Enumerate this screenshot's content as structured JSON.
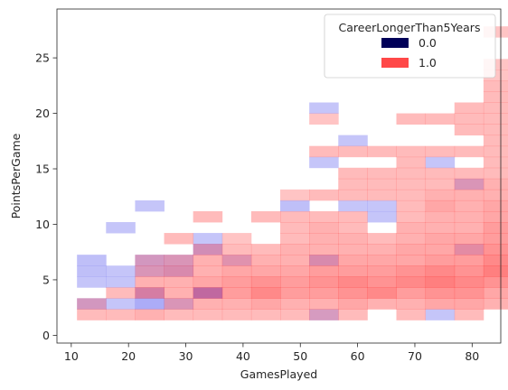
{
  "chart_data": {
    "type": "heatmap",
    "xlabel": "GamesPlayed",
    "ylabel": "PointsPerGame",
    "xlim": [
      7.5,
      85
    ],
    "ylim": [
      -0.7,
      29.4
    ],
    "xticks": [
      10,
      20,
      30,
      40,
      50,
      60,
      70,
      80
    ],
    "yticks": [
      0,
      5,
      10,
      15,
      20,
      25
    ],
    "bin_x": {
      "start": 11,
      "width": 5.07
    },
    "bin_y": {
      "start": 0.4,
      "width": 0.98
    },
    "legend": {
      "title": "CareerLongerThan5Years",
      "placement": "top-right",
      "entries": [
        {
          "label": "0.0",
          "color": "#000058"
        },
        {
          "label": "1.0",
          "color": "#ff4848"
        }
      ]
    },
    "series": [
      {
        "name": "0.0",
        "color": "#7f7ff2",
        "cells": [
          [
            0,
            2,
            0.5
          ],
          [
            0,
            4,
            0.45
          ],
          [
            0,
            5,
            0.5
          ],
          [
            0,
            6,
            0.5
          ],
          [
            1,
            2,
            0.45
          ],
          [
            1,
            4,
            0.45
          ],
          [
            1,
            5,
            0.45
          ],
          [
            1,
            9,
            0.45
          ],
          [
            2,
            2,
            0.65
          ],
          [
            2,
            3,
            0.6
          ],
          [
            2,
            5,
            0.45
          ],
          [
            2,
            6,
            0.5
          ],
          [
            2,
            11,
            0.45
          ],
          [
            3,
            2,
            0.45
          ],
          [
            3,
            5,
            0.5
          ],
          [
            3,
            6,
            0.45
          ],
          [
            4,
            3,
            0.9
          ],
          [
            4,
            7,
            0.55
          ],
          [
            4,
            8,
            0.45
          ],
          [
            5,
            6,
            0.4
          ],
          [
            7,
            11,
            0.5
          ],
          [
            8,
            1,
            0.45
          ],
          [
            8,
            6,
            0.5
          ],
          [
            8,
            15,
            0.45
          ],
          [
            8,
            20,
            0.45
          ],
          [
            9,
            11,
            0.45
          ],
          [
            9,
            17,
            0.45
          ],
          [
            10,
            10,
            0.45
          ],
          [
            10,
            11,
            0.45
          ],
          [
            12,
            1,
            0.45
          ],
          [
            12,
            15,
            0.45
          ],
          [
            13,
            7,
            0.4
          ],
          [
            13,
            13,
            0.45
          ]
        ]
      },
      {
        "name": "1.0",
        "color": "#ff3b3b",
        "cells": [
          [
            0,
            1,
            0.35
          ],
          [
            0,
            2,
            0.3
          ],
          [
            1,
            1,
            0.35
          ],
          [
            1,
            3,
            0.35
          ],
          [
            2,
            1,
            0.4
          ],
          [
            2,
            3,
            0.45
          ],
          [
            2,
            4,
            0.4
          ],
          [
            2,
            5,
            0.35
          ],
          [
            2,
            6,
            0.3
          ],
          [
            3,
            1,
            0.35
          ],
          [
            3,
            2,
            0.35
          ],
          [
            3,
            3,
            0.4
          ],
          [
            3,
            4,
            0.4
          ],
          [
            3,
            5,
            0.4
          ],
          [
            3,
            6,
            0.35
          ],
          [
            3,
            8,
            0.35
          ],
          [
            4,
            1,
            0.35
          ],
          [
            4,
            2,
            0.4
          ],
          [
            4,
            3,
            0.45
          ],
          [
            4,
            4,
            0.45
          ],
          [
            4,
            5,
            0.4
          ],
          [
            4,
            6,
            0.4
          ],
          [
            4,
            7,
            0.35
          ],
          [
            4,
            10,
            0.35
          ],
          [
            5,
            1,
            0.35
          ],
          [
            5,
            2,
            0.4
          ],
          [
            5,
            3,
            0.5
          ],
          [
            5,
            4,
            0.5
          ],
          [
            5,
            5,
            0.45
          ],
          [
            5,
            6,
            0.4
          ],
          [
            5,
            7,
            0.35
          ],
          [
            5,
            8,
            0.3
          ],
          [
            6,
            1,
            0.35
          ],
          [
            6,
            2,
            0.45
          ],
          [
            6,
            3,
            0.6
          ],
          [
            6,
            4,
            0.55
          ],
          [
            6,
            5,
            0.45
          ],
          [
            6,
            6,
            0.4
          ],
          [
            6,
            7,
            0.35
          ],
          [
            6,
            10,
            0.35
          ],
          [
            7,
            1,
            0.35
          ],
          [
            7,
            2,
            0.4
          ],
          [
            7,
            3,
            0.5
          ],
          [
            7,
            4,
            0.5
          ],
          [
            7,
            5,
            0.45
          ],
          [
            7,
            6,
            0.4
          ],
          [
            7,
            7,
            0.4
          ],
          [
            7,
            8,
            0.35
          ],
          [
            7,
            9,
            0.35
          ],
          [
            7,
            10,
            0.35
          ],
          [
            7,
            12,
            0.3
          ],
          [
            8,
            1,
            0.3
          ],
          [
            8,
            2,
            0.4
          ],
          [
            8,
            3,
            0.5
          ],
          [
            8,
            4,
            0.55
          ],
          [
            8,
            5,
            0.5
          ],
          [
            8,
            6,
            0.4
          ],
          [
            8,
            7,
            0.4
          ],
          [
            8,
            8,
            0.4
          ],
          [
            8,
            9,
            0.4
          ],
          [
            8,
            10,
            0.35
          ],
          [
            8,
            12,
            0.35
          ],
          [
            8,
            16,
            0.35
          ],
          [
            8,
            19,
            0.3
          ],
          [
            9,
            1,
            0.35
          ],
          [
            9,
            2,
            0.45
          ],
          [
            9,
            3,
            0.55
          ],
          [
            9,
            4,
            0.6
          ],
          [
            9,
            5,
            0.5
          ],
          [
            9,
            6,
            0.45
          ],
          [
            9,
            7,
            0.4
          ],
          [
            9,
            8,
            0.4
          ],
          [
            9,
            9,
            0.35
          ],
          [
            9,
            10,
            0.35
          ],
          [
            9,
            12,
            0.35
          ],
          [
            9,
            13,
            0.35
          ],
          [
            9,
            14,
            0.35
          ],
          [
            9,
            16,
            0.35
          ],
          [
            10,
            2,
            0.4
          ],
          [
            10,
            3,
            0.6
          ],
          [
            10,
            4,
            0.55
          ],
          [
            10,
            5,
            0.5
          ],
          [
            10,
            6,
            0.45
          ],
          [
            10,
            7,
            0.4
          ],
          [
            10,
            8,
            0.35
          ],
          [
            10,
            12,
            0.35
          ],
          [
            10,
            13,
            0.35
          ],
          [
            10,
            14,
            0.35
          ],
          [
            10,
            16,
            0.35
          ],
          [
            11,
            1,
            0.35
          ],
          [
            11,
            2,
            0.4
          ],
          [
            11,
            3,
            0.5
          ],
          [
            11,
            4,
            0.6
          ],
          [
            11,
            5,
            0.55
          ],
          [
            11,
            6,
            0.45
          ],
          [
            11,
            7,
            0.45
          ],
          [
            11,
            8,
            0.4
          ],
          [
            11,
            9,
            0.4
          ],
          [
            11,
            10,
            0.35
          ],
          [
            11,
            11,
            0.35
          ],
          [
            11,
            12,
            0.35
          ],
          [
            11,
            13,
            0.35
          ],
          [
            11,
            14,
            0.35
          ],
          [
            11,
            15,
            0.35
          ],
          [
            11,
            16,
            0.35
          ],
          [
            11,
            19,
            0.35
          ],
          [
            12,
            2,
            0.45
          ],
          [
            12,
            3,
            0.55
          ],
          [
            12,
            4,
            0.65
          ],
          [
            12,
            5,
            0.6
          ],
          [
            12,
            6,
            0.5
          ],
          [
            12,
            7,
            0.45
          ],
          [
            12,
            8,
            0.45
          ],
          [
            12,
            9,
            0.4
          ],
          [
            12,
            10,
            0.4
          ],
          [
            12,
            11,
            0.45
          ],
          [
            12,
            12,
            0.4
          ],
          [
            12,
            13,
            0.35
          ],
          [
            12,
            14,
            0.35
          ],
          [
            12,
            16,
            0.35
          ],
          [
            12,
            19,
            0.35
          ],
          [
            13,
            1,
            0.35
          ],
          [
            13,
            2,
            0.45
          ],
          [
            13,
            3,
            0.55
          ],
          [
            13,
            4,
            0.6
          ],
          [
            13,
            5,
            0.55
          ],
          [
            13,
            6,
            0.5
          ],
          [
            13,
            7,
            0.45
          ],
          [
            13,
            8,
            0.45
          ],
          [
            13,
            9,
            0.4
          ],
          [
            13,
            10,
            0.4
          ],
          [
            13,
            11,
            0.4
          ],
          [
            13,
            12,
            0.4
          ],
          [
            13,
            13,
            0.35
          ],
          [
            13,
            14,
            0.35
          ],
          [
            13,
            16,
            0.35
          ],
          [
            13,
            18,
            0.35
          ],
          [
            13,
            19,
            0.35
          ],
          [
            13,
            20,
            0.35
          ],
          [
            14,
            2,
            0.4
          ],
          [
            14,
            3,
            0.45
          ],
          [
            14,
            4,
            0.55
          ],
          [
            14,
            5,
            0.65
          ],
          [
            14,
            6,
            0.6
          ],
          [
            14,
            7,
            0.55
          ],
          [
            14,
            8,
            0.5
          ],
          [
            14,
            9,
            0.5
          ],
          [
            14,
            10,
            0.45
          ],
          [
            14,
            11,
            0.45
          ],
          [
            14,
            12,
            0.4
          ],
          [
            14,
            13,
            0.4
          ],
          [
            14,
            14,
            0.35
          ],
          [
            14,
            15,
            0.35
          ],
          [
            14,
            16,
            0.35
          ],
          [
            14,
            17,
            0.35
          ],
          [
            14,
            18,
            0.35
          ],
          [
            14,
            19,
            0.35
          ],
          [
            14,
            20,
            0.35
          ],
          [
            14,
            21,
            0.35
          ],
          [
            14,
            22,
            0.35
          ],
          [
            14,
            23,
            0.3
          ],
          [
            14,
            24,
            0.3
          ],
          [
            14,
            27,
            0.3
          ],
          [
            15,
            2,
            0.4
          ],
          [
            15,
            3,
            0.45
          ],
          [
            15,
            4,
            0.5
          ],
          [
            15,
            5,
            0.95
          ],
          [
            15,
            6,
            1.0
          ],
          [
            15,
            7,
            1.0
          ],
          [
            15,
            8,
            0.95
          ],
          [
            15,
            9,
            1.0
          ],
          [
            15,
            10,
            0.85
          ],
          [
            15,
            11,
            0.8
          ],
          [
            15,
            12,
            0.75
          ],
          [
            15,
            13,
            0.7
          ],
          [
            15,
            14,
            0.7
          ],
          [
            15,
            15,
            0.65
          ],
          [
            15,
            16,
            0.6
          ],
          [
            15,
            17,
            0.55
          ],
          [
            15,
            18,
            0.5
          ],
          [
            15,
            19,
            0.45
          ],
          [
            15,
            20,
            0.45
          ],
          [
            15,
            21,
            0.45
          ],
          [
            15,
            22,
            0.4
          ],
          [
            15,
            23,
            0.4
          ],
          [
            15,
            24,
            0.4
          ],
          [
            15,
            25,
            0.35
          ],
          [
            15,
            26,
            0.3
          ],
          [
            15,
            27,
            0.2
          ],
          [
            15,
            28,
            0.15
          ]
        ]
      }
    ],
    "overlap_cells": [
      {
        "cell": [
          15,
          9
        ],
        "color": "#b82a3a"
      }
    ]
  }
}
